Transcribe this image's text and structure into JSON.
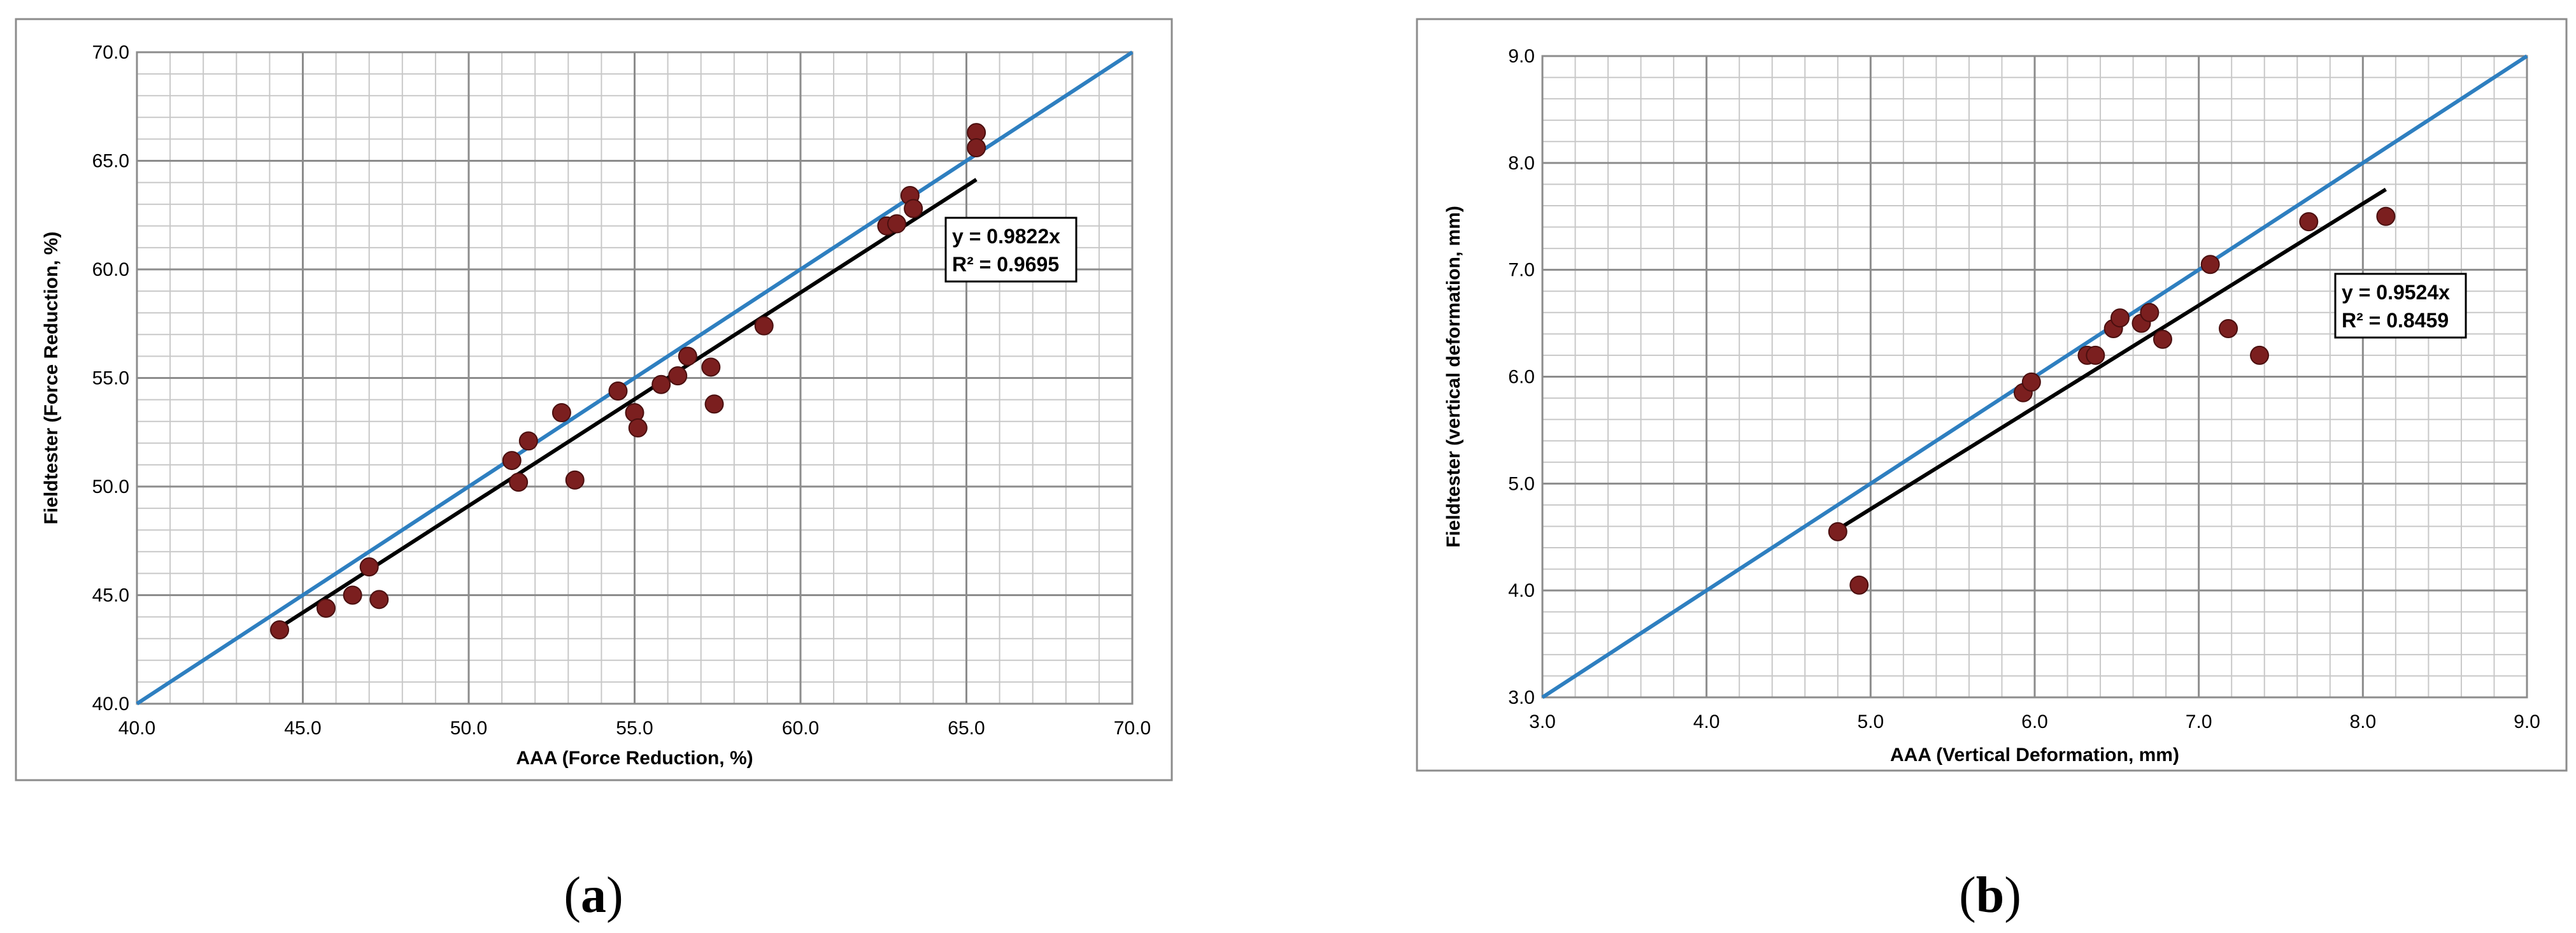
{
  "chart_data": [
    {
      "type": "scatter",
      "caption": "(a)",
      "xlabel": "AAA (Force Reduction, %)",
      "ylabel": "Fieldtester (Force Reduction, %)",
      "xlim": [
        40,
        70
      ],
      "ylim": [
        40,
        70
      ],
      "x_major": 5,
      "y_major": 5,
      "x_minor": 1,
      "y_minor": 1,
      "tick_decimals": 1,
      "grid": true,
      "points": [
        [
          44.3,
          43.4
        ],
        [
          45.7,
          44.4
        ],
        [
          46.5,
          45.0
        ],
        [
          47.0,
          46.3
        ],
        [
          47.3,
          44.8
        ],
        [
          51.3,
          51.2
        ],
        [
          51.5,
          50.2
        ],
        [
          51.8,
          52.1
        ],
        [
          52.8,
          53.4
        ],
        [
          53.2,
          50.3
        ],
        [
          54.5,
          54.4
        ],
        [
          55.0,
          53.4
        ],
        [
          55.1,
          52.7
        ],
        [
          55.8,
          54.7
        ],
        [
          56.3,
          55.1
        ],
        [
          56.6,
          56.0
        ],
        [
          57.3,
          55.5
        ],
        [
          57.4,
          53.8
        ],
        [
          58.9,
          57.4
        ],
        [
          62.6,
          62.0
        ],
        [
          62.9,
          62.1
        ],
        [
          63.3,
          63.4
        ],
        [
          63.4,
          62.8
        ],
        [
          65.3,
          66.3
        ],
        [
          65.3,
          65.6
        ]
      ],
      "identity_line": {
        "from": 40,
        "to": 70,
        "color": "#2e7fc0"
      },
      "trendline": {
        "slope": 0.9822,
        "x_from": 44.3,
        "x_to": 65.3,
        "color": "#000000"
      },
      "equation": "y = 0.9822x",
      "r_squared": "R² = 0.9695",
      "point_color": "#7b1f1f"
    },
    {
      "type": "scatter",
      "caption": "(b)",
      "xlabel": "AAA (Vertical Deformation, mm)",
      "ylabel": "Fieldtester (vertical deformation, mm)",
      "xlim": [
        3,
        9
      ],
      "ylim": [
        3,
        9
      ],
      "x_major": 1,
      "y_major": 1,
      "x_minor": 0.2,
      "y_minor": 0.2,
      "tick_decimals": 1,
      "grid": true,
      "points": [
        [
          4.8,
          4.55
        ],
        [
          4.93,
          4.05
        ],
        [
          5.93,
          5.85
        ],
        [
          5.98,
          5.95
        ],
        [
          6.32,
          6.2
        ],
        [
          6.37,
          6.2
        ],
        [
          6.48,
          6.45
        ],
        [
          6.52,
          6.55
        ],
        [
          6.65,
          6.5
        ],
        [
          6.7,
          6.6
        ],
        [
          6.78,
          6.35
        ],
        [
          7.07,
          7.05
        ],
        [
          7.18,
          6.45
        ],
        [
          7.37,
          6.2
        ],
        [
          7.67,
          7.45
        ],
        [
          8.14,
          7.5
        ]
      ],
      "identity_line": {
        "from": 3,
        "to": 9,
        "color": "#2e7fc0"
      },
      "trendline": {
        "slope": 0.9524,
        "x_from": 4.8,
        "x_to": 8.14,
        "color": "#000000"
      },
      "equation": "y = 0.9524x",
      "r_squared": "R² = 0.8459",
      "point_color": "#7b1f1f"
    }
  ]
}
